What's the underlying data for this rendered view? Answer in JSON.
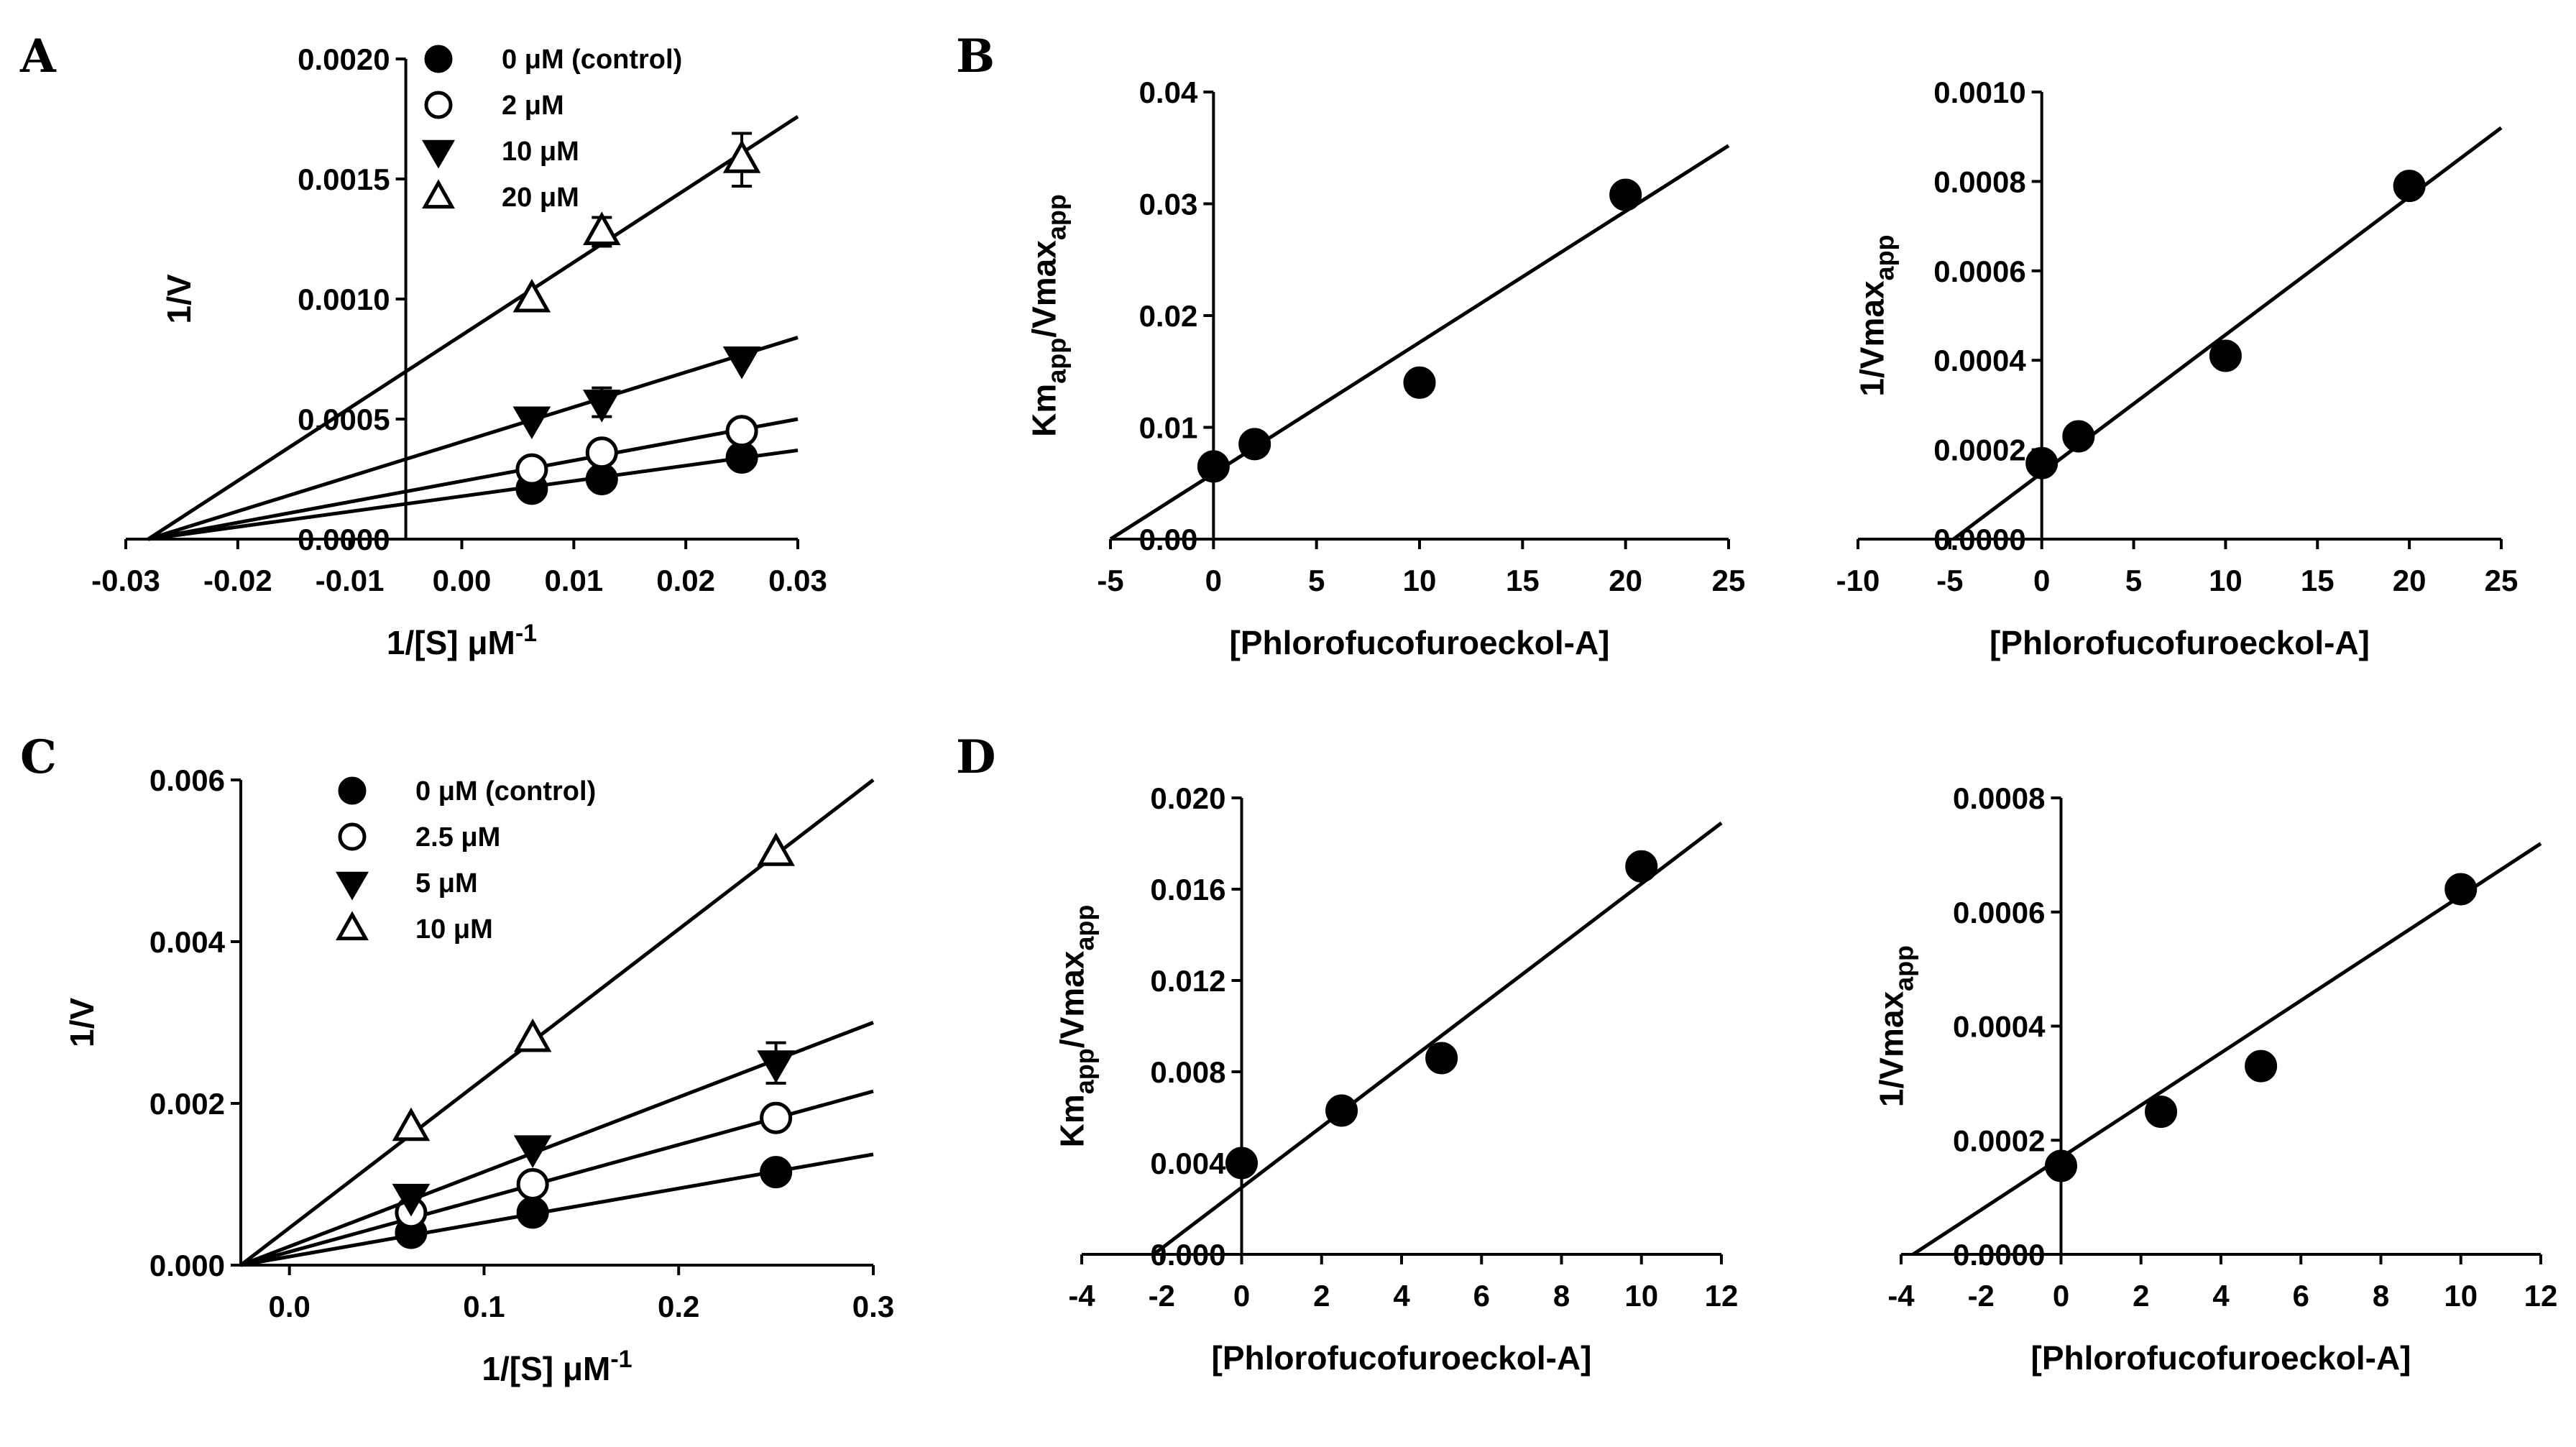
{
  "chart_data": [
    {
      "id": "A",
      "panel_label": "A",
      "type": "scatter",
      "title": "",
      "xlabel": "1/[S] μM",
      "xlabel_sup": "-1",
      "ylabel": "1/V",
      "ylabel_sub": "",
      "ylabel_after": "",
      "xlim": [
        -0.03,
        0.03
      ],
      "ylim": [
        0,
        0.002
      ],
      "xticks": [
        -0.03,
        -0.02,
        -0.01,
        0.0,
        0.01,
        0.02,
        0.03
      ],
      "xtick_labels": [
        "-0.03",
        "-0.02",
        "-0.01",
        "0.00",
        "0.01",
        "0.02",
        "0.03"
      ],
      "yticks": [
        0,
        0.0005,
        0.001,
        0.0015,
        0.002
      ],
      "ytick_labels": [
        "0.0000",
        "0.0005",
        "0.0010",
        "0.0015",
        "0.0020"
      ],
      "y_axis_at_x": -0.005,
      "legend": "top-left",
      "series": [
        {
          "name": "0 μM (control)",
          "marker": "filled-circle",
          "x": [
            0.00625,
            0.0125,
            0.025
          ],
          "y": [
            0.00021,
            0.00025,
            0.00034
          ],
          "err": [
            0,
            0,
            0
          ],
          "fit": [
            [
              -0.028,
              0
            ],
            [
              0.03,
              0.00037
            ]
          ]
        },
        {
          "name": "2 μM",
          "marker": "open-circle",
          "x": [
            0.00625,
            0.0125,
            0.025
          ],
          "y": [
            0.00029,
            0.00036,
            0.00045
          ],
          "err": [
            0,
            0,
            0
          ],
          "fit": [
            [
              -0.028,
              0
            ],
            [
              0.03,
              0.0005
            ]
          ]
        },
        {
          "name": "10 μM",
          "marker": "filled-triangle-down",
          "x": [
            0.00625,
            0.0125,
            0.025
          ],
          "y": [
            0.0005,
            0.00057,
            0.00075
          ],
          "err": [
            0,
            6e-05,
            0
          ],
          "fit": [
            [
              -0.028,
              0
            ],
            [
              0.03,
              0.00084
            ]
          ]
        },
        {
          "name": "20 μM",
          "marker": "open-triangle-up",
          "x": [
            0.00625,
            0.0125,
            0.025
          ],
          "y": [
            0.001,
            0.00128,
            0.00158
          ],
          "err": [
            0,
            6e-05,
            0.00011
          ],
          "fit": [
            [
              -0.028,
              0
            ],
            [
              0.03,
              0.00176
            ]
          ]
        }
      ]
    },
    {
      "id": "B1",
      "panel_label": "B",
      "type": "scatter",
      "title": "",
      "xlabel": "[Phlorofucofuroeckol-A]",
      "xlabel_sup": "",
      "ylabel": "Km",
      "ylabel_sub": "app",
      "ylabel_after": "/Vmax",
      "ylabel_sub2": "app",
      "xlim": [
        -5,
        25
      ],
      "ylim": [
        0,
        0.04
      ],
      "xticks": [
        -5,
        0,
        5,
        10,
        15,
        20,
        25
      ],
      "xtick_labels": [
        "-5",
        "0",
        "5",
        "10",
        "15",
        "20",
        "25"
      ],
      "yticks": [
        0,
        0.01,
        0.02,
        0.03,
        0.04
      ],
      "ytick_labels": [
        "0.00",
        "0.01",
        "0.02",
        "0.03",
        "0.04"
      ],
      "y_axis_at_x": 0,
      "legend": "",
      "series": [
        {
          "name": "",
          "marker": "filled-circle",
          "x": [
            0,
            2,
            10,
            20
          ],
          "y": [
            0.0065,
            0.0085,
            0.014,
            0.0308
          ],
          "err": [
            0,
            0,
            0,
            0
          ],
          "fit": [
            [
              -5,
              0
            ],
            [
              25,
              0.0352
            ]
          ]
        }
      ]
    },
    {
      "id": "B2",
      "panel_label": "",
      "type": "scatter",
      "title": "",
      "xlabel": "[Phlorofucofuroeckol-A]",
      "xlabel_sup": "",
      "ylabel": "1/Vmax",
      "ylabel_sub": "app",
      "ylabel_after": "",
      "xlim": [
        -10,
        25
      ],
      "ylim": [
        0,
        0.001
      ],
      "xticks": [
        -10,
        -5,
        0,
        5,
        10,
        15,
        20,
        25
      ],
      "xtick_labels": [
        "-10",
        "-5",
        "0",
        "5",
        "10",
        "15",
        "20",
        "25"
      ],
      "yticks": [
        0,
        0.0002,
        0.0004,
        0.0006,
        0.0008,
        0.001
      ],
      "ytick_labels": [
        "0.0000",
        "0.0002",
        "0.0004",
        "0.0006",
        "0.0008",
        "0.0010"
      ],
      "y_axis_at_x": 0,
      "legend": "",
      "series": [
        {
          "name": "",
          "marker": "filled-circle",
          "x": [
            0,
            2,
            10,
            20
          ],
          "y": [
            0.00017,
            0.00023,
            0.00041,
            0.00079
          ],
          "err": [
            0,
            0,
            0,
            0
          ],
          "fit": [
            [
              -4.8,
              0
            ],
            [
              25,
              0.00092
            ]
          ]
        }
      ]
    },
    {
      "id": "C",
      "panel_label": "C",
      "type": "scatter",
      "title": "",
      "xlabel": "1/[S] μM",
      "xlabel_sup": "-1",
      "ylabel": "1/V",
      "ylabel_sub": "",
      "ylabel_after": "",
      "xlim": [
        -0.025,
        0.3
      ],
      "ylim": [
        0,
        0.006
      ],
      "xticks": [
        0,
        0.1,
        0.2,
        0.3
      ],
      "xtick_labels": [
        "0.0",
        "0.1",
        "0.2",
        "0.3"
      ],
      "yticks": [
        0,
        0.002,
        0.004,
        0.006
      ],
      "ytick_labels": [
        "0.000",
        "0.002",
        "0.004",
        "0.006"
      ],
      "y_axis_at_x": -0.025,
      "legend": "top-left",
      "series": [
        {
          "name": "0 μM (control)",
          "marker": "filled-circle",
          "x": [
            0.0625,
            0.125,
            0.25
          ],
          "y": [
            0.0004,
            0.00065,
            0.00115
          ],
          "err": [
            0,
            0,
            0
          ],
          "fit": [
            [
              -0.025,
              0
            ],
            [
              0.3,
              0.00137
            ]
          ]
        },
        {
          "name": "2.5 μM",
          "marker": "open-circle",
          "x": [
            0.0625,
            0.125,
            0.25
          ],
          "y": [
            0.00065,
            0.001,
            0.00182
          ],
          "err": [
            0,
            0,
            0
          ],
          "fit": [
            [
              -0.025,
              0
            ],
            [
              0.3,
              0.00215
            ]
          ]
        },
        {
          "name": "5 μM",
          "marker": "filled-triangle-down",
          "x": [
            0.0625,
            0.125,
            0.25
          ],
          "y": [
            0.00085,
            0.00145,
            0.0025
          ],
          "err": [
            0,
            0,
            0.00025
          ],
          "fit": [
            [
              -0.025,
              0
            ],
            [
              0.3,
              0.003
            ]
          ]
        },
        {
          "name": "10 μM",
          "marker": "open-triangle-up",
          "x": [
            0.0625,
            0.125,
            0.25
          ],
          "y": [
            0.0017,
            0.0028,
            0.0051
          ],
          "err": [
            0,
            0,
            0
          ],
          "fit": [
            [
              -0.025,
              0
            ],
            [
              0.3,
              0.006
            ]
          ]
        }
      ]
    },
    {
      "id": "D1",
      "panel_label": "D",
      "type": "scatter",
      "title": "",
      "xlabel": "[Phlorofucofuroeckol-A]",
      "xlabel_sup": "",
      "ylabel": "Km",
      "ylabel_sub": "app",
      "ylabel_after": "/Vmax",
      "ylabel_sub2": "app",
      "xlim": [
        -4,
        12
      ],
      "ylim": [
        0,
        0.02
      ],
      "xticks": [
        -4,
        -2,
        0,
        2,
        4,
        6,
        8,
        10,
        12
      ],
      "xtick_labels": [
        "-4",
        "-2",
        "0",
        "2",
        "4",
        "6",
        "8",
        "10",
        "12"
      ],
      "yticks": [
        0,
        0.004,
        0.008,
        0.012,
        0.016,
        0.02
      ],
      "ytick_labels": [
        "0.000",
        "0.004",
        "0.008",
        "0.012",
        "0.016",
        "0.020"
      ],
      "y_axis_at_x": 0,
      "legend": "",
      "series": [
        {
          "name": "",
          "marker": "filled-circle",
          "x": [
            0,
            2.5,
            5,
            10
          ],
          "y": [
            0.004,
            0.0063,
            0.0086,
            0.017
          ],
          "err": [
            0,
            0,
            0,
            0
          ],
          "fit": [
            [
              -2.2,
              0
            ],
            [
              12,
              0.0189
            ]
          ]
        }
      ]
    },
    {
      "id": "D2",
      "panel_label": "",
      "type": "scatter",
      "title": "",
      "xlabel": "[Phlorofucofuroeckol-A]",
      "xlabel_sup": "",
      "ylabel": "1/Vmax",
      "ylabel_sub": "app",
      "ylabel_after": "",
      "xlim": [
        -4,
        12
      ],
      "ylim": [
        0,
        0.0008
      ],
      "xticks": [
        -4,
        -2,
        0,
        2,
        4,
        6,
        8,
        10,
        12
      ],
      "xtick_labels": [
        "-4",
        "-2",
        "0",
        "2",
        "4",
        "6",
        "8",
        "10",
        "12"
      ],
      "yticks": [
        0,
        0.0002,
        0.0004,
        0.0006,
        0.0008
      ],
      "ytick_labels": [
        "0.0000",
        "0.0002",
        "0.0004",
        "0.0006",
        "0.0008"
      ],
      "y_axis_at_x": 0,
      "legend": "",
      "series": [
        {
          "name": "",
          "marker": "filled-circle",
          "x": [
            0,
            2.5,
            5,
            10
          ],
          "y": [
            0.000155,
            0.00025,
            0.00033,
            0.00064
          ],
          "err": [
            0,
            0,
            0,
            0
          ],
          "fit": [
            [
              -3.7,
              0
            ],
            [
              12,
              0.00072
            ]
          ]
        }
      ]
    }
  ]
}
